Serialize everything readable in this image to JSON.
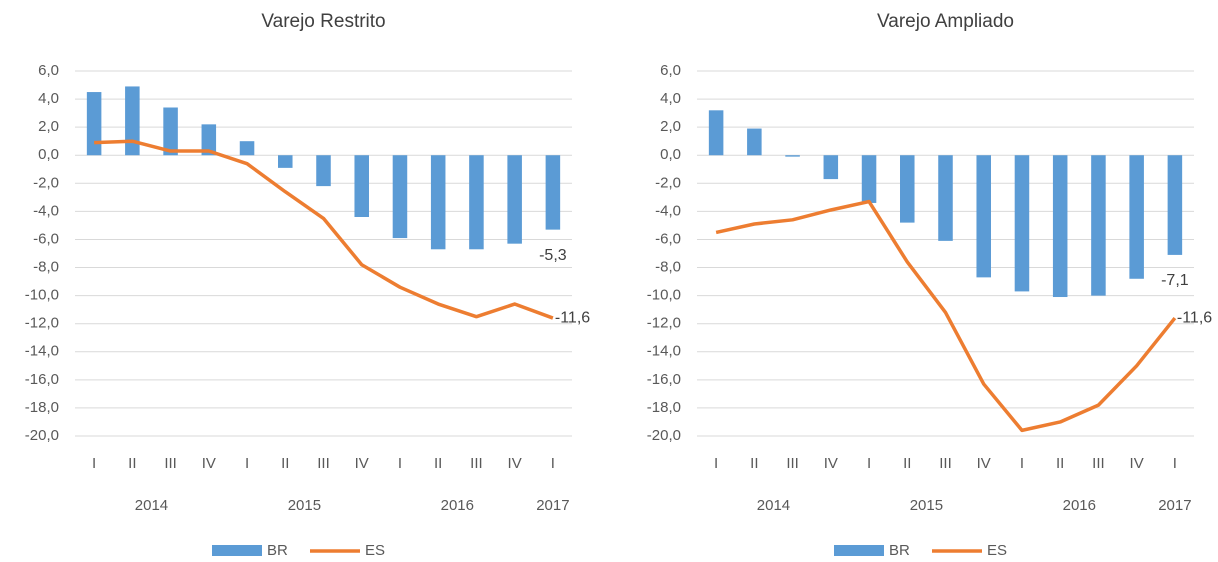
{
  "chart_data": [
    {
      "type": "combo",
      "title": "Varejo Restrito",
      "categories": [
        "I",
        "II",
        "III",
        "IV",
        "I",
        "II",
        "III",
        "IV",
        "I",
        "II",
        "III",
        "IV",
        "I"
      ],
      "year_groups": [
        {
          "label": "2014",
          "count": 4
        },
        {
          "label": "2015",
          "count": 4
        },
        {
          "label": "2016",
          "count": 4
        },
        {
          "label": "2017",
          "count": 1
        }
      ],
      "series": [
        {
          "name": "BR",
          "type": "bar",
          "color": "#5b9bd5",
          "values": [
            4.5,
            4.9,
            3.4,
            2.2,
            1.0,
            -0.9,
            -2.2,
            -4.4,
            -5.9,
            -6.7,
            -6.7,
            -6.3,
            -5.3
          ],
          "value_labels": [
            null,
            null,
            null,
            null,
            null,
            null,
            null,
            null,
            null,
            null,
            null,
            null,
            "-5,3"
          ]
        },
        {
          "name": "ES",
          "type": "line",
          "color": "#ed7d31",
          "values": [
            0.9,
            1.0,
            0.3,
            0.3,
            -0.6,
            -2.6,
            -4.5,
            -7.8,
            -9.4,
            -10.6,
            -11.5,
            -10.6,
            -11.6
          ],
          "value_labels": [
            null,
            null,
            null,
            null,
            null,
            null,
            null,
            null,
            null,
            null,
            null,
            null,
            "-11,6"
          ]
        }
      ],
      "ylim": [
        -20,
        6
      ],
      "yticks": [
        {
          "value": 6,
          "label": "6,0"
        },
        {
          "value": 4,
          "label": "4,0"
        },
        {
          "value": 2,
          "label": "2,0"
        },
        {
          "value": 0,
          "label": "0,0"
        },
        {
          "value": -2,
          "label": "-2,0"
        },
        {
          "value": -4,
          "label": "-4,0"
        },
        {
          "value": -6,
          "label": "-6,0"
        },
        {
          "value": -8,
          "label": "-8,0"
        },
        {
          "value": -10,
          "label": "-10,0"
        },
        {
          "value": -12,
          "label": "-12,0"
        },
        {
          "value": -14,
          "label": "-14,0"
        },
        {
          "value": -16,
          "label": "-16,0"
        },
        {
          "value": -18,
          "label": "-18,0"
        },
        {
          "value": -20,
          "label": "-20,0"
        }
      ],
      "grid": true
    },
    {
      "type": "combo",
      "title": "Varejo Ampliado",
      "categories": [
        "I",
        "II",
        "III",
        "IV",
        "I",
        "II",
        "III",
        "IV",
        "I",
        "II",
        "III",
        "IV",
        "I"
      ],
      "year_groups": [
        {
          "label": "2014",
          "count": 4
        },
        {
          "label": "2015",
          "count": 4
        },
        {
          "label": "2016",
          "count": 4
        },
        {
          "label": "2017",
          "count": 1
        }
      ],
      "series": [
        {
          "name": "BR",
          "type": "bar",
          "color": "#5b9bd5",
          "values": [
            3.2,
            1.9,
            -0.1,
            -1.7,
            -3.4,
            -4.8,
            -6.1,
            -8.7,
            -9.7,
            -10.1,
            -10.0,
            -8.8,
            -7.1
          ],
          "value_labels": [
            null,
            null,
            null,
            null,
            null,
            null,
            null,
            null,
            null,
            null,
            null,
            null,
            "-7,1"
          ]
        },
        {
          "name": "ES",
          "type": "line",
          "color": "#ed7d31",
          "values": [
            -5.5,
            -4.9,
            -4.6,
            -3.9,
            -3.3,
            -7.6,
            -11.2,
            -16.3,
            -19.6,
            -19.0,
            -17.8,
            -15.0,
            -11.6
          ],
          "value_labels": [
            null,
            null,
            null,
            null,
            null,
            null,
            null,
            null,
            null,
            null,
            null,
            null,
            "-11,6"
          ]
        }
      ],
      "ylim": [
        -20,
        6
      ],
      "yticks": [
        {
          "value": 6,
          "label": "6,0"
        },
        {
          "value": 4,
          "label": "4,0"
        },
        {
          "value": 2,
          "label": "2,0"
        },
        {
          "value": 0,
          "label": "0,0"
        },
        {
          "value": -2,
          "label": "-2,0"
        },
        {
          "value": -4,
          "label": "-4,0"
        },
        {
          "value": -6,
          "label": "-6,0"
        },
        {
          "value": -8,
          "label": "-8,0"
        },
        {
          "value": -10,
          "label": "-10,0"
        },
        {
          "value": -12,
          "label": "-12,0"
        },
        {
          "value": -14,
          "label": "-14,0"
        },
        {
          "value": -16,
          "label": "-16,0"
        },
        {
          "value": -18,
          "label": "-18,0"
        },
        {
          "value": -20,
          "label": "-20,0"
        }
      ],
      "grid": true
    }
  ]
}
